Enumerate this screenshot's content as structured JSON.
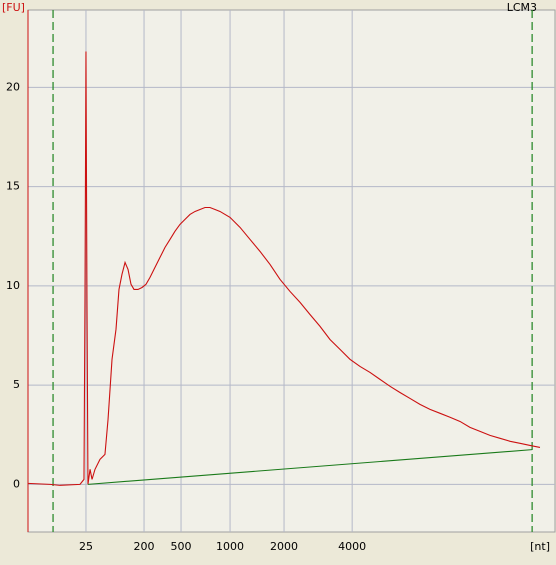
{
  "chart_data": {
    "type": "line",
    "y_label": "[FU]",
    "x_label": "[nt]",
    "sample": "LCM3",
    "xlim": [
      17,
      70
    ],
    "ylim": [
      -2.4,
      23.9
    ],
    "xticks": [
      {
        "value": 22.83,
        "label": "25"
      },
      {
        "value": 28.67,
        "label": "200"
      },
      {
        "value": 32.39,
        "label": "500"
      },
      {
        "value": 37.32,
        "label": "1000"
      },
      {
        "value": 42.75,
        "label": "2000"
      },
      {
        "value": 49.6,
        "label": "4000"
      }
    ],
    "yticks": [
      0,
      5,
      10,
      15,
      20
    ],
    "grid": true,
    "markers": [
      19.52,
      67.7
    ],
    "marker_color": "#2e8b2e",
    "series": [
      {
        "color": "#cc1111",
        "x": [
          17.0,
          19.21,
          20.22,
          22.23,
          22.63,
          22.73,
          22.83,
          22.93,
          23.03,
          23.24,
          23.44,
          23.74,
          24.24,
          24.74,
          25.05,
          25.45,
          25.85,
          26.15,
          26.45,
          26.76,
          27.06,
          27.36,
          27.66,
          28.06,
          28.47,
          28.87,
          29.27,
          29.77,
          30.28,
          30.78,
          31.28,
          31.78,
          32.29,
          32.79,
          33.29,
          33.8,
          34.3,
          34.8,
          35.3,
          35.81,
          36.31,
          37.32,
          38.32,
          39.33,
          40.33,
          41.34,
          42.34,
          43.35,
          44.36,
          45.36,
          46.37,
          47.37,
          48.38,
          49.38,
          50.39,
          51.4,
          52.4,
          53.41,
          54.41,
          55.42,
          56.42,
          57.43,
          58.44,
          59.44,
          60.45,
          61.45,
          62.46,
          63.46,
          64.47,
          65.48,
          66.48,
          67.49,
          68.49
        ],
        "values": [
          0.05,
          0,
          -0.05,
          0,
          0.25,
          9.32,
          21.81,
          9.32,
          0,
          0.76,
          0.25,
          0.76,
          1.26,
          1.51,
          3.27,
          6.3,
          7.81,
          9.82,
          10.58,
          11.18,
          10.83,
          10.08,
          9.82,
          9.82,
          9.92,
          10.08,
          10.43,
          10.93,
          11.44,
          11.94,
          12.34,
          12.75,
          13.1,
          13.35,
          13.6,
          13.75,
          13.85,
          13.95,
          13.95,
          13.85,
          13.75,
          13.45,
          12.95,
          12.34,
          11.74,
          11.08,
          10.33,
          9.72,
          9.17,
          8.56,
          7.96,
          7.3,
          6.8,
          6.3,
          5.94,
          5.64,
          5.29,
          4.94,
          4.63,
          4.33,
          4.03,
          3.78,
          3.58,
          3.38,
          3.17,
          2.87,
          2.67,
          2.47,
          2.32,
          2.17,
          2.07,
          1.96,
          1.86
        ]
      },
      {
        "color": "#1a7a1a",
        "x": [
          23.03,
          67.7
        ],
        "values": [
          0,
          1.75
        ]
      }
    ]
  }
}
